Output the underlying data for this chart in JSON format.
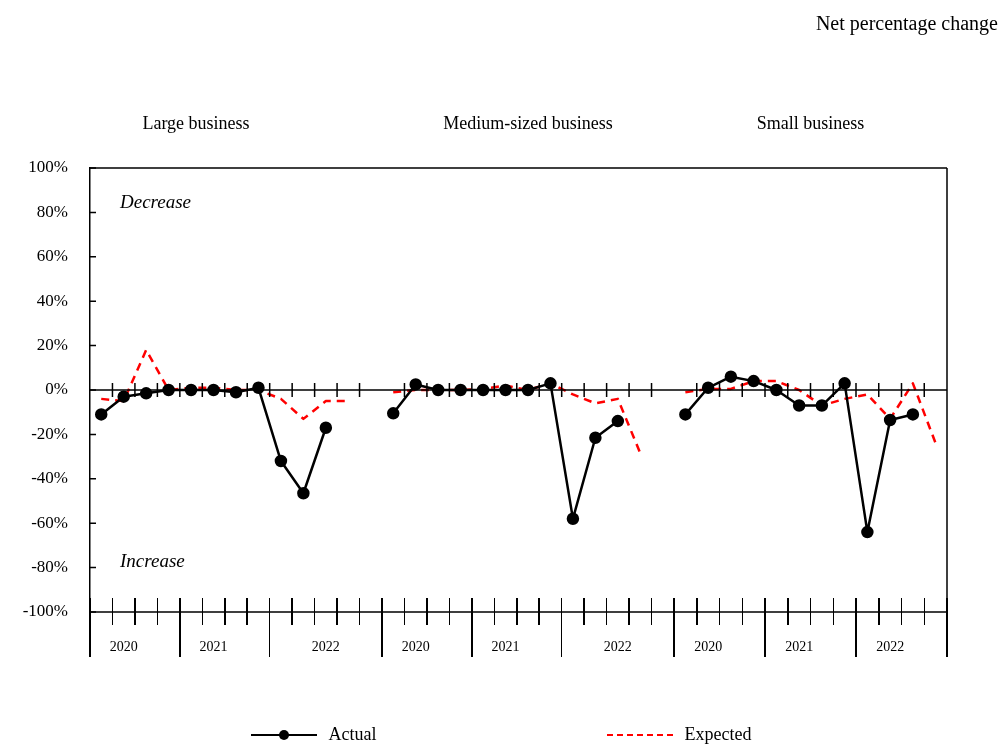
{
  "chart_data": [
    {
      "type": "line",
      "title": "Large business",
      "ylabel": "Net percentage change",
      "categories": [
        null,
        "2020",
        null,
        null,
        null,
        "2021",
        null,
        null,
        null,
        null,
        "2022",
        null,
        null
      ],
      "series": [
        {
          "name": "Actual",
          "color": "#000000",
          "marker": "circle",
          "line_style": "solid",
          "values": [
            -11,
            -3,
            -1.5,
            0,
            0,
            0,
            -1,
            1,
            -32,
            -46.5,
            -17,
            null,
            null
          ]
        },
        {
          "name": "Expected",
          "color": "#ff0000",
          "marker": "none",
          "line_style": "dashed",
          "values": [
            -4,
            -5,
            18,
            0,
            1,
            1,
            0,
            0,
            -4,
            -13,
            -5,
            -5,
            null
          ]
        }
      ],
      "ylim": [
        -100,
        100
      ],
      "yticks": [
        {
          "value": -100,
          "label": "-100%"
        },
        {
          "value": -80,
          "label": "-80%"
        },
        {
          "value": -60,
          "label": "-60%"
        },
        {
          "value": -40,
          "label": "-40%"
        },
        {
          "value": -20,
          "label": "-20%"
        },
        {
          "value": 0,
          "label": "0%"
        },
        {
          "value": 20,
          "label": "20%"
        },
        {
          "value": 40,
          "label": "40%"
        },
        {
          "value": 60,
          "label": "60%"
        },
        {
          "value": 80,
          "label": "80%"
        },
        {
          "value": 100,
          "label": "100%"
        }
      ],
      "ref_lines": [
        {
          "axis": "y",
          "value": 0,
          "color": "#000000"
        }
      ],
      "annotations": [
        "Decrease",
        "Increase"
      ],
      "legend": "bottom",
      "grid": false
    },
    {
      "type": "line",
      "title": "Medium-sized business",
      "categories": [
        null,
        "2020",
        null,
        null,
        null,
        "2021",
        null,
        null,
        null,
        null,
        "2022",
        null,
        null
      ],
      "series": [
        {
          "color": "#000000",
          "marker": "circle",
          "line_style": "solid",
          "values": [
            -10.5,
            2.5,
            0,
            0,
            0,
            0,
            0,
            3,
            -58,
            -21.5,
            -14,
            null,
            null
          ]
        },
        {
          "color": "#ff0000",
          "marker": "none",
          "line_style": "dashed",
          "values": [
            -1,
            0,
            0,
            0,
            0.5,
            2,
            0,
            3,
            -2,
            -6,
            -4,
            -28.5,
            null
          ]
        }
      ],
      "ylim": [
        -100,
        100
      ],
      "ref_lines": [
        {
          "axis": "y",
          "value": 0,
          "color": "#000000"
        }
      ],
      "tick_labels": "x",
      "grid": false
    },
    {
      "type": "line",
      "title": "Small business",
      "categories": [
        null,
        "2020",
        null,
        null,
        null,
        "2021",
        null,
        null,
        null,
        "2022",
        null,
        null
      ],
      "series": [
        {
          "color": "#000000",
          "marker": "circle",
          "line_style": "solid",
          "values": [
            -11,
            1,
            6,
            4,
            0,
            -7,
            -7,
            3,
            -64,
            -13.5,
            -11,
            null
          ]
        },
        {
          "color": "#ff0000",
          "marker": "none",
          "line_style": "dashed",
          "values": [
            -1,
            0.5,
            0.5,
            4,
            4,
            0,
            -7,
            -4,
            -2,
            -13,
            3,
            -24
          ]
        }
      ],
      "ylim": [
        -100,
        100
      ],
      "ref_lines": [
        {
          "axis": "y",
          "value": 0,
          "color": "#000000"
        }
      ],
      "tick_labels": "x",
      "grid": false
    }
  ]
}
